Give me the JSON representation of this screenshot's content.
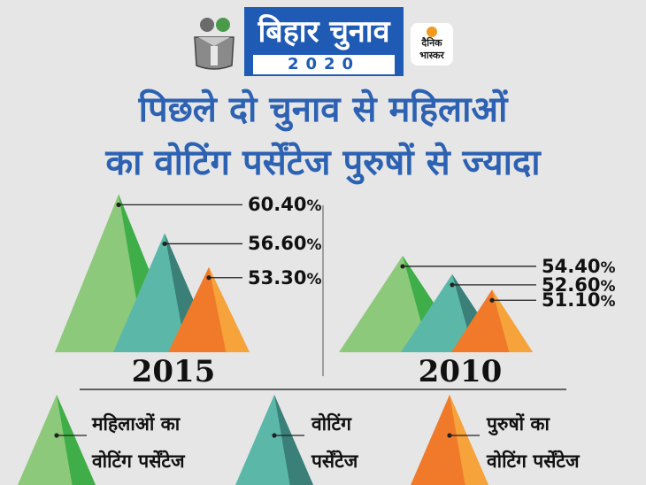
{
  "header": {
    "banner_title": "बिहार चुनाव",
    "banner_year": "2020",
    "newspaper": "दैनिक भास्कर",
    "headline_line1": "पिछले दो चुनाव से महिलाओं",
    "headline_line2": "का वोटिंग पर्सेंटेज पुरुषों से ज्यादा"
  },
  "chart_data": [
    {
      "type": "bar",
      "title": "2015",
      "categories": [
        "महिलाओं का वोटिंग पर्सेंटेज",
        "वोटिंग पर्सेंटेज",
        "पुरुषों का वोटिंग पर्सेंटेज"
      ],
      "values": [
        60.4,
        56.6,
        53.3
      ],
      "labels": [
        "60.40",
        "56.60",
        "53.30"
      ],
      "unit": "%"
    },
    {
      "type": "bar",
      "title": "2010",
      "categories": [
        "महिलाओं का वोटिंग पर्सेंटेज",
        "वोटिंग पर्सेंटेज",
        "पुरुषों का वोटिंग पर्सेंटेज"
      ],
      "values": [
        54.4,
        52.6,
        51.1
      ],
      "labels": [
        "54.40",
        "52.60",
        "51.10"
      ],
      "unit": "%"
    }
  ],
  "legend": [
    {
      "line1": "महिलाओं का",
      "line2": "वोटिंग पर्सेंटेज",
      "color": "#8dc97a",
      "shade": "#3fae49"
    },
    {
      "line1": "वोटिंग",
      "line2": "पर्सेंटेज",
      "color": "#5bb8a9",
      "shade": "#3a7f78"
    },
    {
      "line1": "पुरुषों का",
      "line2": "वोटिंग पर्सेंटेज",
      "color": "#f07a2a",
      "shade": "#f5a33a"
    }
  ],
  "colors": {
    "women": "#8dc97a",
    "women_shade": "#3fae49",
    "total": "#5bb8a9",
    "total_shade": "#3a7f78",
    "men": "#f07a2a",
    "men_shade": "#f5a33a",
    "headline": "#2d62b3",
    "banner": "#1f5bb5"
  }
}
